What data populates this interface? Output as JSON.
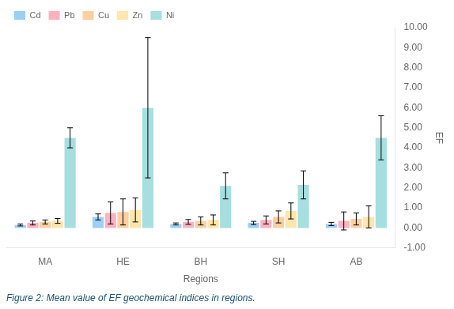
{
  "chart_data": {
    "type": "bar",
    "xlabel": "Regions",
    "ylabel": "EF",
    "caption": "Figure 2: Mean value of EF geochemical indices in regions.",
    "categories": [
      "MA",
      "HE",
      "BH",
      "SH",
      "AB"
    ],
    "series": [
      {
        "name": "Cd",
        "values": [
          0.15,
          0.55,
          0.2,
          0.25,
          0.2
        ],
        "errors": [
          0.05,
          0.15,
          0.05,
          0.08,
          0.08
        ]
      },
      {
        "name": "Pb",
        "values": [
          0.25,
          0.75,
          0.3,
          0.4,
          0.35
        ],
        "errors": [
          0.1,
          0.55,
          0.12,
          0.2,
          0.45
        ]
      },
      {
        "name": "Cu",
        "values": [
          0.3,
          0.8,
          0.35,
          0.55,
          0.45
        ],
        "errors": [
          0.1,
          0.65,
          0.2,
          0.3,
          0.3
        ]
      },
      {
        "name": "Zn",
        "values": [
          0.35,
          0.9,
          0.4,
          0.85,
          0.55
        ],
        "errors": [
          0.12,
          0.6,
          0.25,
          0.4,
          0.55
        ]
      },
      {
        "name": "Ni",
        "values": [
          4.5,
          6.0,
          2.1,
          2.15,
          4.5
        ],
        "errors": [
          0.5,
          3.5,
          0.65,
          0.7,
          1.1
        ]
      }
    ],
    "ylim": [
      -1.0,
      10.0
    ],
    "yticks": [
      {
        "value": -1.0,
        "label": "-1.00"
      },
      {
        "value": 0.0,
        "label": "0.00"
      },
      {
        "value": 1.0,
        "label": "1.00"
      },
      {
        "value": 2.0,
        "label": "2.00"
      },
      {
        "value": 3.0,
        "label": "3.00"
      },
      {
        "value": 4.0,
        "label": "4.00"
      },
      {
        "value": 5.0,
        "label": "5.00"
      },
      {
        "value": 6.0,
        "label": "6.00"
      },
      {
        "value": 7.0,
        "label": "7.00"
      },
      {
        "value": 8.0,
        "label": "8.00"
      },
      {
        "value": 9.0,
        "label": "9.00"
      },
      {
        "value": 10.0,
        "label": "10.00"
      }
    ],
    "grid": false,
    "legend": "upper left"
  }
}
